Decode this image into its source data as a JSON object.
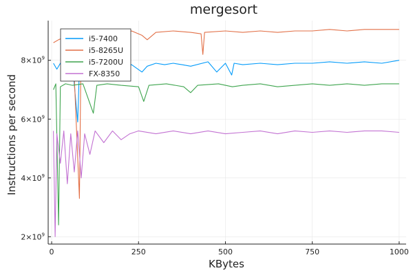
{
  "chart_data": {
    "type": "line",
    "title": "mergesort",
    "xlabel": "KBytes",
    "ylabel": "Instructions per second",
    "xlim": [
      -10,
      1020
    ],
    "ylim": [
      1750000000.0,
      9350000000.0
    ],
    "grid": true,
    "legend_placement": "top-left",
    "x_ticks": [
      {
        "value": 0,
        "label": "0"
      },
      {
        "value": 250,
        "label": "250"
      },
      {
        "value": 500,
        "label": "500"
      },
      {
        "value": 750,
        "label": "750"
      },
      {
        "value": 1000,
        "label": "1000"
      }
    ],
    "y_ticks": [
      {
        "value": 2000000000.0,
        "mantissa": "2×10",
        "exponent": "9"
      },
      {
        "value": 4000000000.0,
        "mantissa": "4×10",
        "exponent": "9"
      },
      {
        "value": 6000000000.0,
        "mantissa": "6×10",
        "exponent": "9"
      },
      {
        "value": 8000000000.0,
        "mantissa": "8×10",
        "exponent": "9"
      }
    ],
    "series": [
      {
        "name": "i5-7400",
        "color": "#009AFA",
        "points": [
          [
            5,
            7900000000.0
          ],
          [
            15,
            7700000000.0
          ],
          [
            25,
            7900000000.0
          ],
          [
            40,
            7800000000.0
          ],
          [
            60,
            7850000000.0
          ],
          [
            75,
            5900000000.0
          ],
          [
            80,
            7800000000.0
          ],
          [
            100,
            7900000000.0
          ],
          [
            120,
            7800000000.0
          ],
          [
            150,
            7850000000.0
          ],
          [
            175,
            7900000000.0
          ],
          [
            200,
            7800000000.0
          ],
          [
            230,
            7850000000.0
          ],
          [
            260,
            7600000000.0
          ],
          [
            275,
            7800000000.0
          ],
          [
            300,
            7900000000.0
          ],
          [
            325,
            7850000000.0
          ],
          [
            350,
            7900000000.0
          ],
          [
            375,
            7850000000.0
          ],
          [
            400,
            7800000000.0
          ],
          [
            450,
            7950000000.0
          ],
          [
            475,
            7600000000.0
          ],
          [
            500,
            7900000000.0
          ],
          [
            518,
            7500000000.0
          ],
          [
            525,
            7900000000.0
          ],
          [
            550,
            7850000000.0
          ],
          [
            600,
            7900000000.0
          ],
          [
            650,
            7850000000.0
          ],
          [
            700,
            7900000000.0
          ],
          [
            750,
            7900000000.0
          ],
          [
            800,
            7950000000.0
          ],
          [
            850,
            7900000000.0
          ],
          [
            900,
            7950000000.0
          ],
          [
            950,
            7900000000.0
          ],
          [
            1000,
            8000000000.0
          ]
        ]
      },
      {
        "name": "i5-8265U",
        "color": "#E26F46",
        "points": [
          [
            5,
            8600000000.0
          ],
          [
            20,
            8700000000.0
          ],
          [
            40,
            8800000000.0
          ],
          [
            60,
            8900000000.0
          ],
          [
            80,
            3300000000.0
          ],
          [
            85,
            8900000000.0
          ],
          [
            110,
            8950000000.0
          ],
          [
            150,
            8900000000.0
          ],
          [
            180,
            8950000000.0
          ],
          [
            200,
            8800000000.0
          ],
          [
            230,
            9000000000.0
          ],
          [
            260,
            8850000000.0
          ],
          [
            275,
            8700000000.0
          ],
          [
            300,
            8950000000.0
          ],
          [
            350,
            9000000000.0
          ],
          [
            400,
            8950000000.0
          ],
          [
            430,
            8900000000.0
          ],
          [
            435,
            8200000000.0
          ],
          [
            440,
            8950000000.0
          ],
          [
            500,
            9000000000.0
          ],
          [
            550,
            8950000000.0
          ],
          [
            600,
            9000000000.0
          ],
          [
            650,
            8950000000.0
          ],
          [
            700,
            9000000000.0
          ],
          [
            750,
            9000000000.0
          ],
          [
            800,
            9050000000.0
          ],
          [
            850,
            9000000000.0
          ],
          [
            900,
            9050000000.0
          ],
          [
            950,
            9050000000.0
          ],
          [
            1000,
            9050000000.0
          ]
        ]
      },
      {
        "name": "i5-7200U",
        "color": "#3DA44D",
        "points": [
          [
            5,
            7000000000.0
          ],
          [
            12,
            7200000000.0
          ],
          [
            20,
            2400000000.0
          ],
          [
            25,
            7100000000.0
          ],
          [
            40,
            7200000000.0
          ],
          [
            60,
            7150000000.0
          ],
          [
            90,
            7200000000.0
          ],
          [
            120,
            6200000000.0
          ],
          [
            130,
            7150000000.0
          ],
          [
            160,
            7200000000.0
          ],
          [
            200,
            7150000000.0
          ],
          [
            250,
            7100000000.0
          ],
          [
            265,
            6600000000.0
          ],
          [
            280,
            7150000000.0
          ],
          [
            330,
            7200000000.0
          ],
          [
            380,
            7100000000.0
          ],
          [
            400,
            6900000000.0
          ],
          [
            420,
            7150000000.0
          ],
          [
            480,
            7200000000.0
          ],
          [
            520,
            7100000000.0
          ],
          [
            550,
            7150000000.0
          ],
          [
            600,
            7200000000.0
          ],
          [
            650,
            7100000000.0
          ],
          [
            700,
            7150000000.0
          ],
          [
            750,
            7200000000.0
          ],
          [
            800,
            7150000000.0
          ],
          [
            850,
            7200000000.0
          ],
          [
            900,
            7150000000.0
          ],
          [
            950,
            7200000000.0
          ],
          [
            1000,
            7200000000.0
          ]
        ]
      },
      {
        "name": "FX-8350",
        "color": "#C271D2",
        "points": [
          [
            5,
            5600000000.0
          ],
          [
            10,
            2000000000.0
          ],
          [
            15,
            5500000000.0
          ],
          [
            25,
            4500000000.0
          ],
          [
            35,
            5600000000.0
          ],
          [
            45,
            3800000000.0
          ],
          [
            55,
            5500000000.0
          ],
          [
            65,
            4200000000.0
          ],
          [
            75,
            5600000000.0
          ],
          [
            85,
            4000000000.0
          ],
          [
            95,
            5500000000.0
          ],
          [
            110,
            4800000000.0
          ],
          [
            125,
            5600000000.0
          ],
          [
            150,
            5200000000.0
          ],
          [
            175,
            5600000000.0
          ],
          [
            200,
            5300000000.0
          ],
          [
            225,
            5500000000.0
          ],
          [
            250,
            5600000000.0
          ],
          [
            300,
            5500000000.0
          ],
          [
            350,
            5600000000.0
          ],
          [
            400,
            5500000000.0
          ],
          [
            450,
            5600000000.0
          ],
          [
            500,
            5500000000.0
          ],
          [
            550,
            5550000000.0
          ],
          [
            600,
            5600000000.0
          ],
          [
            650,
            5500000000.0
          ],
          [
            700,
            5600000000.0
          ],
          [
            750,
            5550000000.0
          ],
          [
            800,
            5600000000.0
          ],
          [
            850,
            5550000000.0
          ],
          [
            900,
            5600000000.0
          ],
          [
            950,
            5600000000.0
          ],
          [
            1000,
            5550000000.0
          ]
        ]
      }
    ]
  }
}
